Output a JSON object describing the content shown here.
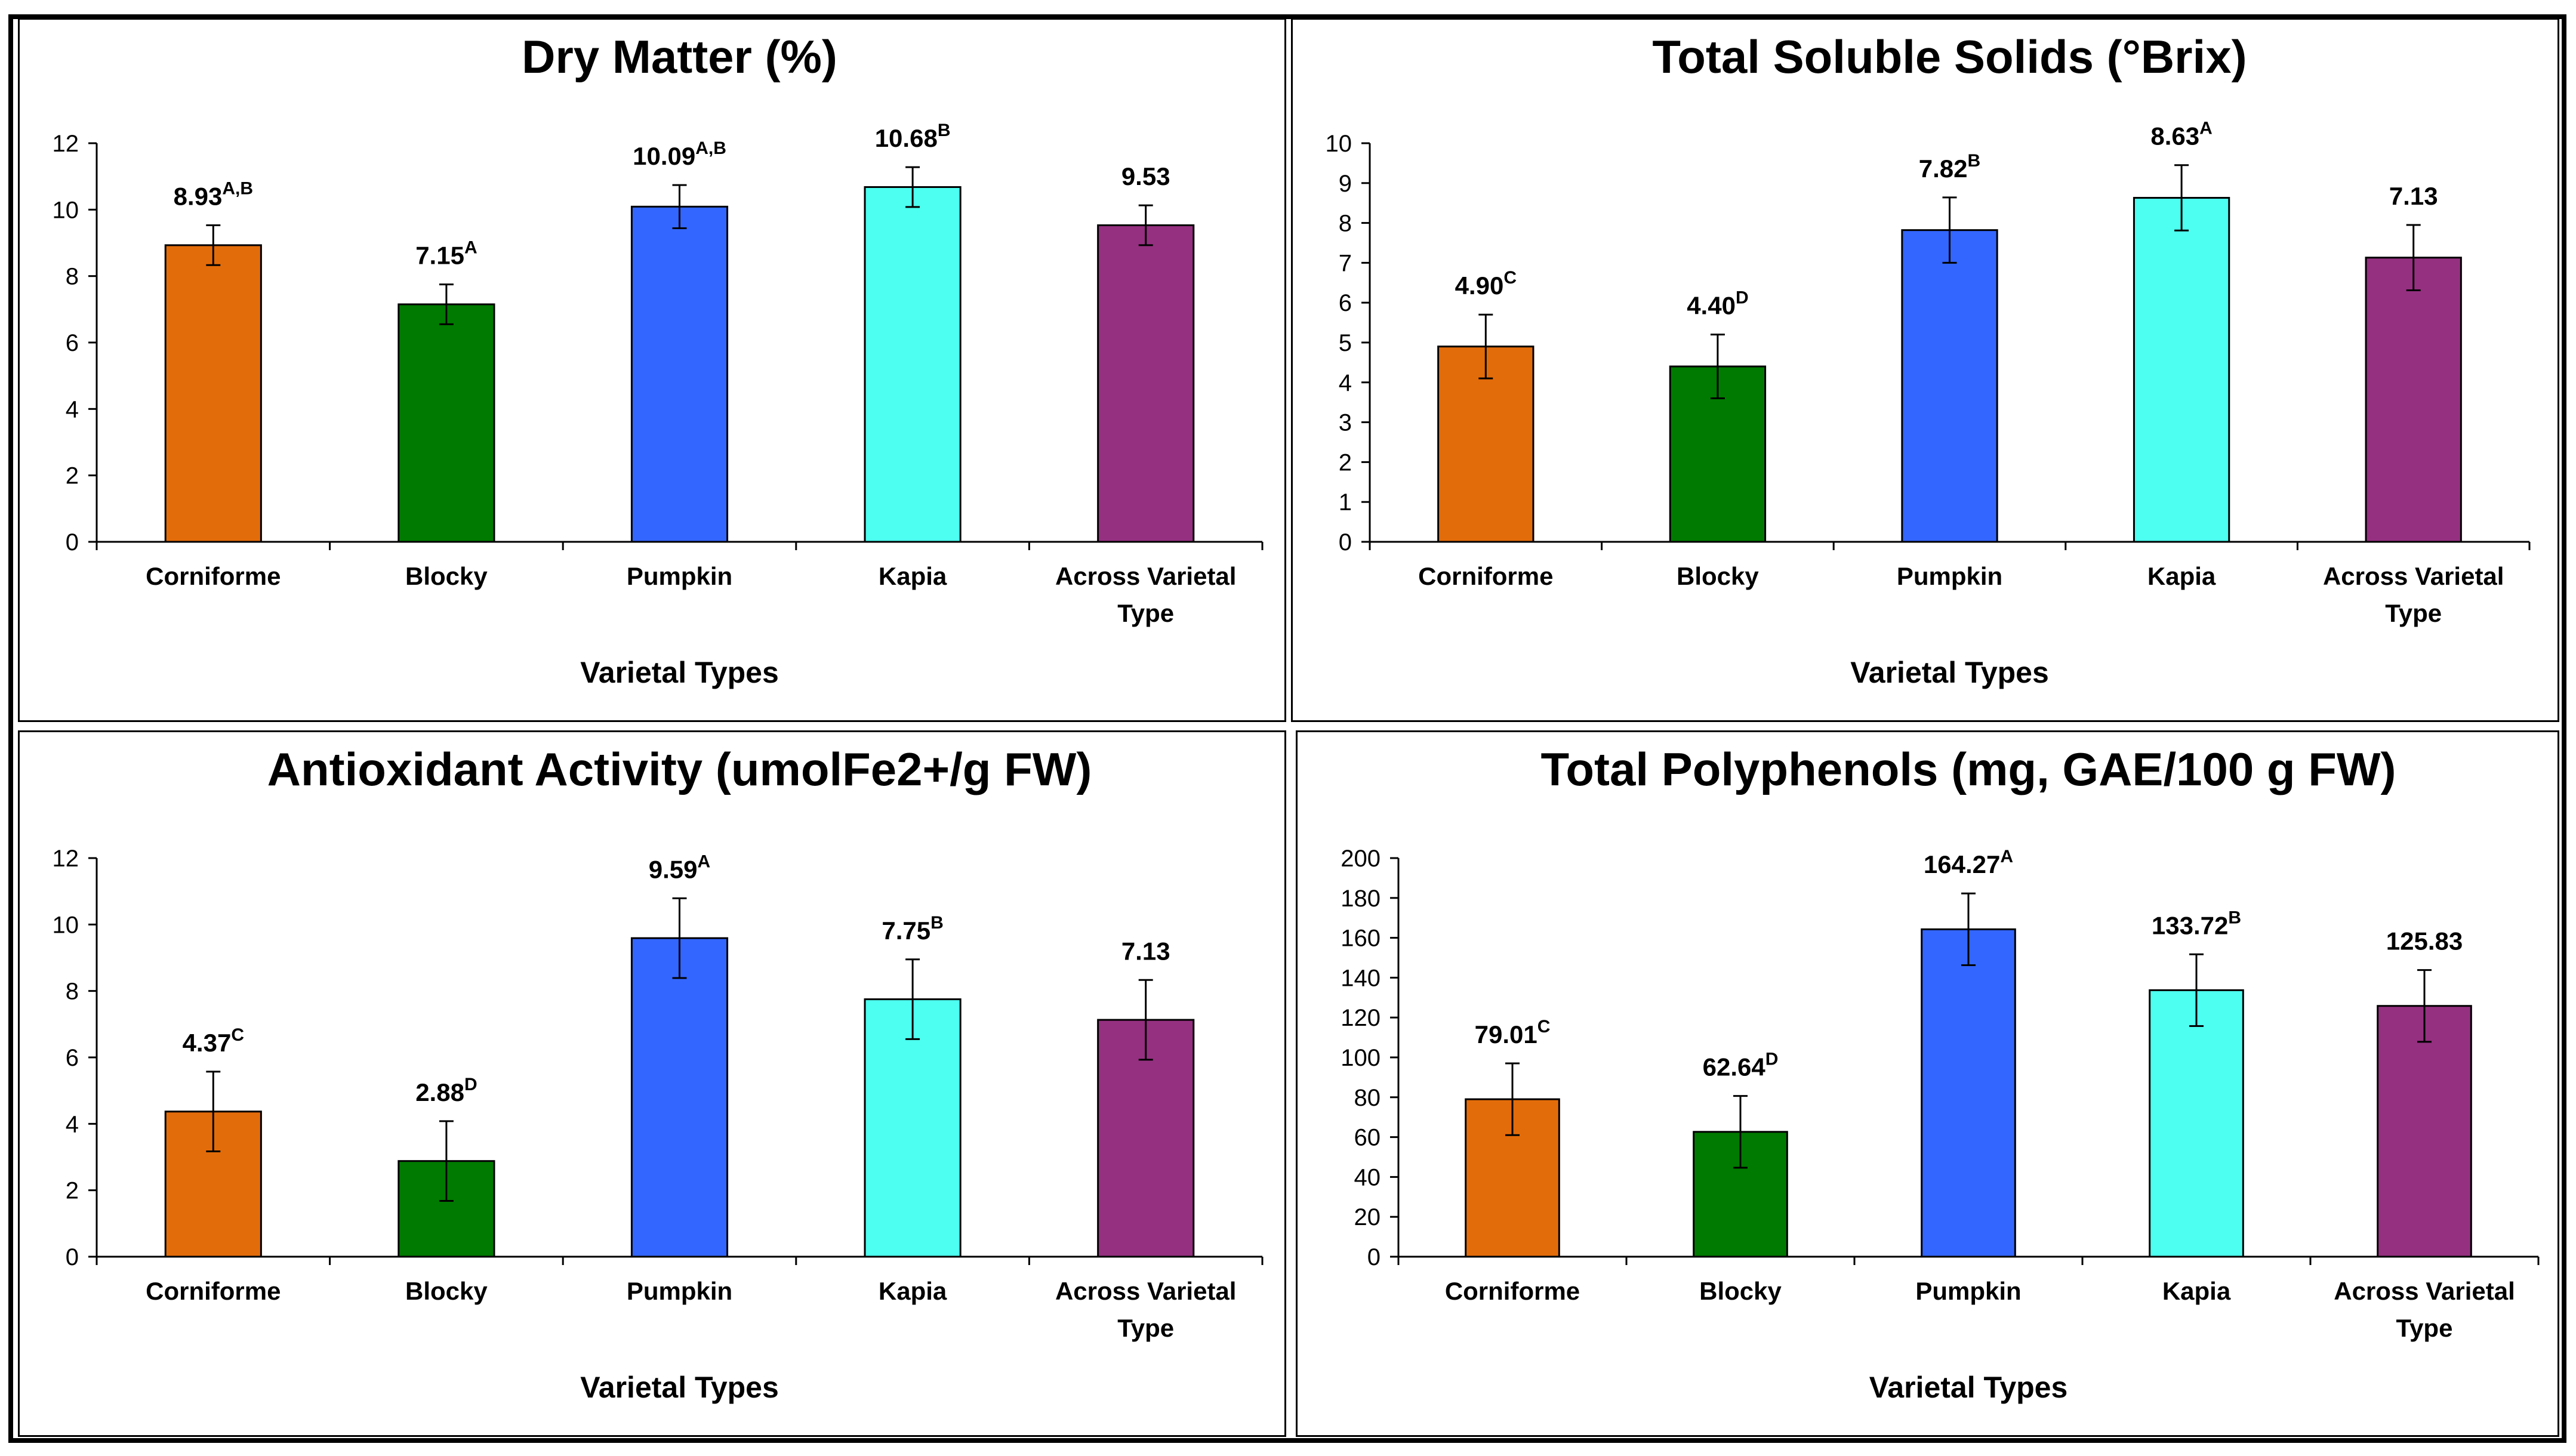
{
  "chart_data": [
    {
      "type": "bar",
      "title": "Dry Matter (%)",
      "xlabel": "Varietal Types",
      "ylabel": "",
      "ylim": [
        0,
        12
      ],
      "yticks": [
        0,
        2,
        4,
        6,
        8,
        10,
        12
      ],
      "categories": [
        [
          "Corniforme"
        ],
        [
          "Blocky"
        ],
        [
          "Pumpkin"
        ],
        [
          "Kapia"
        ],
        [
          "Across Varietal",
          "Type"
        ]
      ],
      "values": [
        8.93,
        7.15,
        10.09,
        10.68,
        9.53
      ],
      "errors": [
        0.6,
        0.6,
        0.65,
        0.6,
        0.6
      ],
      "value_labels": [
        "8.93",
        "7.15",
        "10.09",
        "10.68",
        "9.53"
      ],
      "letters": [
        "A,B",
        "A",
        "A,B",
        "B",
        ""
      ],
      "colors": [
        "#E36C0A",
        "#007A00",
        "#3366FF",
        "#4DFFF0",
        "#953080"
      ],
      "grid": false
    },
    {
      "type": "bar",
      "title": "Total Soluble Solids (°Brix)",
      "xlabel": "Varietal Types",
      "ylabel": "",
      "ylim": [
        0,
        10
      ],
      "yticks": [
        0,
        1,
        2,
        3,
        4,
        5,
        6,
        7,
        8,
        9,
        10
      ],
      "categories": [
        [
          "Corniforme"
        ],
        [
          "Blocky"
        ],
        [
          "Pumpkin"
        ],
        [
          "Kapia"
        ],
        [
          "Across Varietal",
          "Type"
        ]
      ],
      "values": [
        4.9,
        4.4,
        7.82,
        8.63,
        7.13
      ],
      "errors": [
        0.8,
        0.8,
        0.82,
        0.82,
        0.82
      ],
      "value_labels": [
        "4.90",
        "4.40",
        "7.82",
        "8.63",
        "7.13"
      ],
      "letters": [
        "C",
        "D",
        "B",
        "A",
        ""
      ],
      "colors": [
        "#E36C0A",
        "#007A00",
        "#3366FF",
        "#4DFFF0",
        "#953080"
      ],
      "grid": false
    },
    {
      "type": "bar",
      "title": "Antioxidant Activity (umolFe2+/g FW)",
      "xlabel": "Varietal Types",
      "ylabel": "",
      "ylim": [
        0,
        12
      ],
      "yticks": [
        0,
        2,
        4,
        6,
        8,
        10,
        12
      ],
      "categories": [
        [
          "Corniforme"
        ],
        [
          "Blocky"
        ],
        [
          "Pumpkin"
        ],
        [
          "Kapia"
        ],
        [
          "Across Varietal",
          "Type"
        ]
      ],
      "values": [
        4.37,
        2.88,
        9.59,
        7.75,
        7.13
      ],
      "errors": [
        1.2,
        1.2,
        1.2,
        1.2,
        1.2
      ],
      "value_labels": [
        "4.37",
        "2.88",
        "9.59",
        "7.75",
        "7.13"
      ],
      "letters": [
        "C",
        "D",
        "A",
        "B",
        ""
      ],
      "colors": [
        "#E36C0A",
        "#007A00",
        "#3366FF",
        "#4DFFF0",
        "#953080"
      ],
      "grid": false
    },
    {
      "type": "bar",
      "title": "Total Polyphenols (mg, GAE/100 g FW)",
      "xlabel": "Varietal Types",
      "ylabel": "",
      "ylim": [
        0,
        200
      ],
      "yticks": [
        0,
        20,
        40,
        60,
        80,
        100,
        120,
        140,
        160,
        180,
        200
      ],
      "categories": [
        [
          "Corniforme"
        ],
        [
          "Blocky"
        ],
        [
          "Pumpkin"
        ],
        [
          "Kapia"
        ],
        [
          "Across Varietal",
          "Type"
        ]
      ],
      "values": [
        79.01,
        62.64,
        164.27,
        133.72,
        125.83
      ],
      "errors": [
        18,
        18,
        18,
        18,
        18
      ],
      "value_labels": [
        "79.01",
        "62.64",
        "164.27",
        "133.72",
        "125.83"
      ],
      "letters": [
        "C",
        "D",
        "A",
        "B",
        ""
      ],
      "colors": [
        "#E36C0A",
        "#007A00",
        "#3366FF",
        "#4DFFF0",
        "#953080"
      ],
      "grid": false
    }
  ]
}
